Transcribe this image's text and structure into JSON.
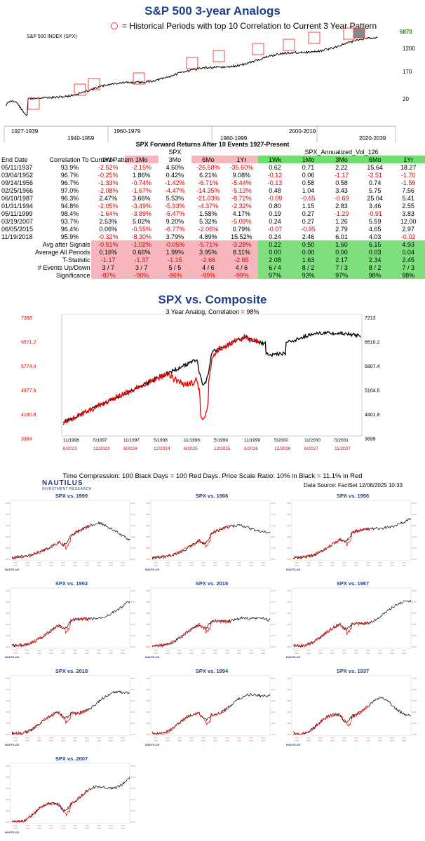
{
  "top": {
    "title": "S&P 500 3-year Analogs",
    "legend": "= Historical Periods with top 10 Correlation to Current 3 Year Pattern",
    "index_label": "S&P 500 INDEX (SPX)",
    "last_value": "6870",
    "y_ticks": [
      "1200",
      "170",
      "20"
    ],
    "x_top": [
      "1927-1939",
      "1960-1979",
      "2000-2019"
    ],
    "x_bottom": [
      "1940-1959",
      "1980-1999",
      "2020-2039"
    ]
  },
  "table": {
    "caption": "SPX Forward Returns After 10 Events 1927-Present",
    "group_spx": "SPX",
    "group_vol": "SPX_Annualized_Vol_126",
    "corr_header": "Correlation To\nCurrent Pattern",
    "col_end": "End Date",
    "cols": [
      "1Wk",
      "1Mo",
      "3Mo",
      "6Mo",
      "1Yr",
      "1Wk",
      "1Mo",
      "3Mo",
      "6Mo",
      "1Yr"
    ],
    "rows": [
      [
        "05/11/1937",
        "93.9%",
        "-2.52%",
        "-2.15%",
        "4.60%",
        "-26.58%",
        "-35.60%",
        "0.62",
        "0.71",
        "2.22",
        "15.64",
        "18.27"
      ],
      [
        "03/04/1952",
        "96.7%",
        "-0.25%",
        "1.86%",
        "0.42%",
        "6.21%",
        "9.08%",
        "-0.12",
        "0.06",
        "-1.17",
        "-2.51",
        "-1.70"
      ],
      [
        "09/14/1956",
        "96.7%",
        "-1.33%",
        "-0.74%",
        "-1.42%",
        "-6.71%",
        "-5.44%",
        "-0.13",
        "0.58",
        "0.58",
        "0.74",
        "-1.59"
      ],
      [
        "02/25/1966",
        "97.0%",
        "-2.08%",
        "-1.67%",
        "-4.47%",
        "-14.35%",
        "-5.13%",
        "0.48",
        "1.04",
        "3.43",
        "5.75",
        "7.56"
      ],
      [
        "06/10/1987",
        "96.3%",
        "2.47%",
        "3.66%",
        "5.53%",
        "-21.03%",
        "-8.72%",
        "-0.09",
        "-0.65",
        "-0.69",
        "25.04",
        "5.41"
      ],
      [
        "01/31/1994",
        "94.8%",
        "-2.05%",
        "-3.49%",
        "-5.93%",
        "-4.37%",
        "-2.32%",
        "0.80",
        "1.15",
        "2.83",
        "3.46",
        "2.55"
      ],
      [
        "05/11/1999",
        "98.4%",
        "-1.64%",
        "-3.89%",
        "-5.47%",
        "1.58%",
        "4.17%",
        "0.19",
        "0.27",
        "-1.29",
        "-0.91",
        "3.83"
      ],
      [
        "03/19/2007",
        "93.7%",
        "2.53%",
        "5.02%",
        "9.20%",
        "5.32%",
        "-5.09%",
        "0.24",
        "0.27",
        "1.26",
        "5.59",
        "12.00"
      ],
      [
        "06/05/2015",
        "96.4%",
        "0.06%",
        "-0.55%",
        "-6.77%",
        "-2.06%",
        "0.79%",
        "-0.07",
        "-0.95",
        "2.79",
        "4.65",
        "2.97"
      ],
      [
        "11/19/2018",
        "95.9%",
        "-0.32%",
        "-8.30%",
        "3.79%",
        "4.89%",
        "15.52%",
        "0.24",
        "2.46",
        "6.01",
        "4.03",
        "-0.02"
      ]
    ],
    "summary": [
      [
        "Avg after Signals",
        "-0.51%",
        "-1.02%",
        "-0.05%",
        "-5.71%",
        "-3.28%",
        "0.22",
        "0.50",
        "1.60",
        "6.15",
        "4.93"
      ],
      [
        "Average All Periods",
        "0.16%",
        "0.66%",
        "1.99%",
        "3.95%",
        "8.11%",
        "0.00",
        "0.00",
        "0.00",
        "0.03",
        "0.04"
      ],
      [
        "T-Statistic",
        "-1.17",
        "-1.37",
        "-1.15",
        "-2.66",
        "-2.65",
        "2.08",
        "1.63",
        "2.17",
        "2.34",
        "2.45"
      ],
      [
        "# Events Up/Down",
        "3 / 7",
        "3 / 7",
        "5 / 5",
        "4 / 6",
        "4 / 6",
        "6 / 4",
        "8 / 2",
        "7 / 3",
        "8 / 2",
        "7 / 3"
      ],
      [
        "Significance",
        "-87%",
        "-90%",
        "-86%",
        "-99%",
        "-99%",
        "97%",
        "93%",
        "97%",
        "98%",
        "98%"
      ]
    ]
  },
  "composite": {
    "title": "SPX vs. Composite",
    "subtitle": "3 Year Analog, Correlation = 98%",
    "left_ticks": [
      "7368",
      "6571.2",
      "5774.4",
      "4977.6",
      "4180.8",
      "3384"
    ],
    "right_ticks": [
      "7213",
      "6510.2",
      "5807.4",
      "5104.6",
      "4401.8",
      "3699"
    ],
    "x_black": [
      "11/1996",
      "5/1997",
      "11/1997",
      "5/1998",
      "11/1998",
      "5/1999",
      "11/1999",
      "5/2000",
      "11/2000",
      "5/2001"
    ],
    "x_red": [
      "6/2023",
      "12/2023",
      "6/2024",
      "12/2024",
      "6/2025",
      "12/2025",
      "6/2026",
      "12/2026",
      "6/2027",
      "11/2027"
    ],
    "note": "Time Compression: 100 Black Days = 100 Red Days.  Price Scale Ratio: 10% in Black = 11.1% in Red",
    "source": "Data Source: FactSet   12/08/2025 10:33",
    "logo": "NAUTILUS",
    "logo_sub": "INVESTMENT RESEARCH"
  },
  "minis": [
    {
      "title": "SPX vs. 1999",
      "seed": 1
    },
    {
      "title": "SPX vs. 1966",
      "seed": 2
    },
    {
      "title": "SPX vs. 1956",
      "seed": 3
    },
    {
      "title": "SPX vs. 1952",
      "seed": 4
    },
    {
      "title": "SPX vs. 2015",
      "seed": 5
    },
    {
      "title": "SPX vs. 1987",
      "seed": 6
    },
    {
      "title": "SPX vs. 2018",
      "seed": 7
    },
    {
      "title": "SPX vs. 1994",
      "seed": 8
    },
    {
      "title": "SPX vs. 1937",
      "seed": 9
    },
    {
      "title": "SPX vs. 2007",
      "seed": 10
    }
  ],
  "chart_data": [
    {
      "type": "line",
      "title": "S&P 500 3-year Analogs",
      "ylabel": "S&P 500 INDEX (SPX)",
      "yscale": "log",
      "analog_periods": [
        "1937",
        "1952",
        "1956",
        "1966",
        "1987",
        "1994",
        "1999",
        "2007",
        "2015",
        "2018"
      ]
    },
    {
      "type": "line",
      "title": "SPX vs. Composite",
      "subtitle": "3 Year Analog, Correlation = 98%",
      "series": [
        {
          "name": "SPX (red, 6/2023-12/2025)",
          "ylim": [
            3384,
            7368
          ]
        },
        {
          "name": "Composite (black)",
          "ylim": [
            3699,
            7213
          ]
        }
      ]
    }
  ]
}
